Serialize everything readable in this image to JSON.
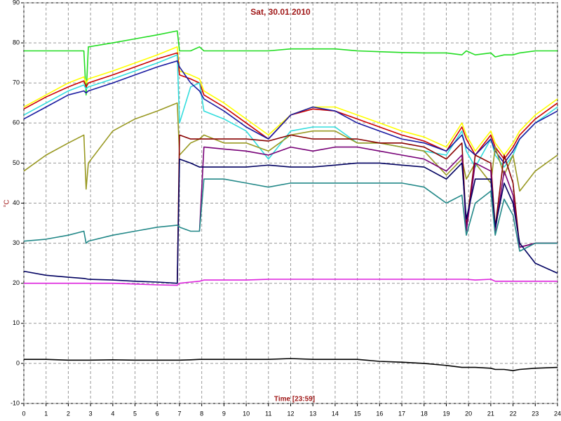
{
  "chart_data": {
    "type": "line",
    "title": "Sat, 30.01.2010",
    "xlabel": "Time [23:59]",
    "ylabel": "°C",
    "x": [
      0,
      1,
      2,
      2.7,
      2.8,
      2.9,
      4,
      5,
      6,
      6.9,
      7,
      7.5,
      7.9,
      8.1,
      9,
      10,
      11,
      12,
      13,
      14,
      15,
      16,
      17,
      18,
      19,
      19.7,
      19.9,
      20.3,
      21,
      21.2,
      21.6,
      22,
      22.3,
      23,
      24
    ],
    "xlim": [
      0,
      24
    ],
    "xticks": [
      0,
      1,
      2,
      3,
      4,
      5,
      6,
      7,
      8,
      9,
      10,
      11,
      12,
      13,
      14,
      15,
      16,
      17,
      18,
      19,
      20,
      21,
      22,
      23,
      24
    ],
    "ylim": [
      -10,
      90
    ],
    "yticks": [
      -10,
      0,
      10,
      20,
      30,
      40,
      50,
      60,
      70,
      80,
      90
    ],
    "grid": true,
    "series": [
      {
        "color": "#22dd22",
        "values": [
          78,
          78,
          78,
          78,
          67,
          79,
          80,
          81,
          82,
          83,
          78,
          78,
          79,
          78,
          78,
          78,
          78,
          78.5,
          78.5,
          78.5,
          78,
          77.8,
          77.6,
          77.5,
          77.5,
          77,
          78,
          77,
          77.5,
          76.5,
          77,
          77,
          77.5,
          78,
          78
        ]
      },
      {
        "color": "#ffff00",
        "values": [
          64,
          67,
          70,
          71.5,
          70,
          71,
          73,
          75,
          77,
          79,
          73,
          72,
          71,
          68,
          65,
          61,
          57,
          62,
          64,
          64,
          62,
          60,
          58,
          56.5,
          54,
          60,
          57,
          53,
          58,
          55,
          52,
          55,
          58,
          62,
          66
        ]
      },
      {
        "color": "#cc0000",
        "values": [
          63.5,
          66.5,
          69,
          70.5,
          69,
          70,
          72,
          74,
          76,
          77.5,
          72,
          71,
          70,
          67,
          64,
          60,
          56,
          62,
          63.5,
          63,
          61,
          59,
          57,
          55.5,
          53,
          59,
          56,
          52,
          57,
          54,
          51,
          54,
          57,
          61,
          65
        ]
      },
      {
        "color": "#33dddd",
        "values": [
          62,
          65,
          68,
          69.5,
          68.5,
          69,
          71,
          73,
          75,
          77,
          60,
          69,
          70,
          63,
          61,
          58,
          51,
          58,
          59,
          59,
          55,
          55,
          54,
          53,
          52,
          58,
          53,
          49,
          56,
          52,
          49,
          52,
          56,
          60,
          64
        ]
      },
      {
        "color": "#1a1aa0",
        "values": [
          61,
          64,
          67,
          68,
          67.5,
          68,
          70,
          72,
          74,
          75.5,
          74,
          70,
          68,
          66,
          63,
          59,
          56,
          62,
          64,
          63,
          60,
          58,
          56,
          55,
          53,
          57,
          54,
          52,
          56,
          53,
          50,
          53,
          56,
          60,
          63
        ]
      },
      {
        "color": "#999922",
        "values": [
          48,
          52,
          55,
          57,
          43.5,
          50,
          58,
          61,
          63,
          65,
          52,
          55,
          56,
          57,
          55,
          55,
          53,
          57,
          58,
          58,
          55,
          55,
          54,
          53,
          47,
          51,
          46,
          50,
          45,
          54,
          47,
          52,
          43,
          48,
          52
        ]
      },
      {
        "color": "#880000",
        "values": [
          null,
          null,
          null,
          null,
          null,
          null,
          null,
          null,
          null,
          20,
          57,
          56,
          56,
          56,
          56,
          56,
          55.5,
          57,
          56,
          56,
          56,
          55,
          55,
          54,
          51,
          55,
          34,
          52,
          50,
          34,
          52,
          45,
          29,
          30,
          30
        ]
      },
      {
        "color": "#770077",
        "values": [
          null,
          null,
          null,
          null,
          null,
          null,
          null,
          null,
          null,
          null,
          null,
          null,
          33,
          54,
          53.5,
          53,
          52,
          54,
          53,
          54,
          54,
          53,
          52,
          51,
          48,
          52,
          33,
          50,
          48,
          33,
          48,
          42,
          29,
          30,
          30
        ]
      },
      {
        "color": "#000060",
        "values": [
          23,
          22,
          21.5,
          21.2,
          21.1,
          21,
          20.8,
          20.5,
          20.3,
          20,
          51,
          50,
          49,
          49,
          49,
          49,
          49.5,
          49,
          49,
          49.5,
          50,
          50,
          49.5,
          49,
          46,
          50,
          36,
          46,
          46,
          34,
          45,
          40,
          30,
          25,
          22.5
        ]
      },
      {
        "color": "#228888",
        "values": [
          30.5,
          31,
          32,
          33,
          30,
          30.5,
          32,
          33,
          34,
          34.5,
          34,
          33,
          33,
          46,
          46,
          45,
          44,
          45,
          45,
          45,
          45,
          45,
          45,
          44,
          40,
          42,
          32,
          40,
          43,
          32,
          41,
          37,
          28,
          30,
          30
        ]
      },
      {
        "color": "#dd22dd",
        "values": [
          20,
          20,
          20,
          20,
          20,
          20,
          20,
          19.8,
          19.6,
          19.5,
          20,
          20.3,
          20.5,
          20.8,
          20.8,
          20.8,
          21,
          21,
          21,
          21,
          21,
          21,
          21,
          21,
          21,
          21,
          21,
          20.8,
          21,
          20.5,
          20.5,
          20.5,
          20.5,
          20.5,
          20.5
        ]
      },
      {
        "color": "#000000",
        "values": [
          1,
          1,
          0.8,
          0.8,
          0.8,
          0.8,
          0.9,
          0.8,
          0.8,
          0.8,
          0.8,
          0.9,
          1,
          1,
          1,
          1,
          1,
          1.2,
          1,
          1,
          1,
          0.5,
          0.3,
          0,
          -0.5,
          -1,
          -1,
          -1,
          -1.2,
          -1.5,
          -1.5,
          -1.8,
          -1.5,
          -1.2,
          -1
        ]
      }
    ]
  }
}
